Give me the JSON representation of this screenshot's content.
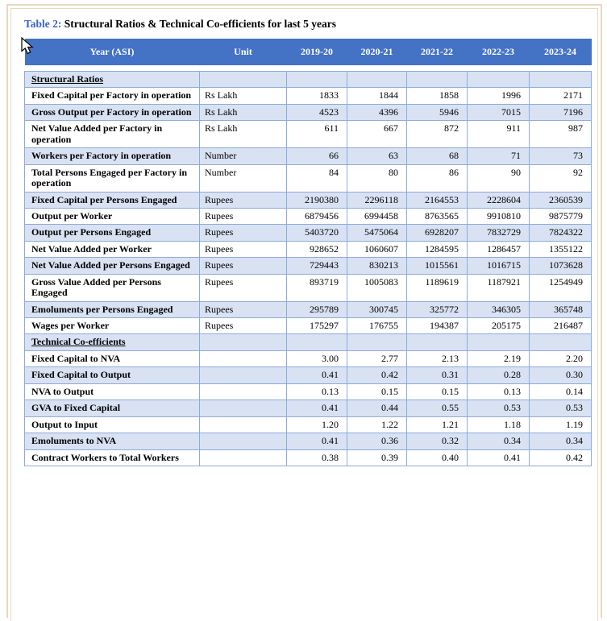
{
  "page": {
    "title_label": "Table 2:",
    "title_text": " Structural Ratios & Technical Co-efficients for last 5 years"
  },
  "colors": {
    "header_bg": "#4472C4",
    "row_alt_bg": "#D9E2F3",
    "border": "#8EAADB",
    "page_border": "#E8D8BE",
    "title_accent": "#3B62C4"
  },
  "icons": {
    "cursor": "arrow-pointer-icon"
  },
  "table": {
    "columns": [
      "Year (ASI)",
      "Unit",
      "2019-20",
      "2020-21",
      "2021-22",
      "2022-23",
      "2023-24"
    ],
    "rows": [
      {
        "label": "Structural Ratios",
        "section": true,
        "unit": "",
        "values": [
          "",
          "",
          "",
          "",
          ""
        ]
      },
      {
        "label": "Fixed Capital per Factory in operation",
        "unit": "Rs Lakh",
        "values": [
          "1833",
          "1844",
          "1858",
          "1996",
          "2171"
        ]
      },
      {
        "label": "Gross Output per Factory in operation",
        "unit": "Rs Lakh",
        "values": [
          "4523",
          "4396",
          "5946",
          "7015",
          "7196"
        ]
      },
      {
        "label": "Net Value Added per Factory in operation",
        "unit": "Rs Lakh",
        "values": [
          "611",
          "667",
          "872",
          "911",
          "987"
        ]
      },
      {
        "label": "Workers per Factory in operation",
        "unit": "Number",
        "values": [
          "66",
          "63",
          "68",
          "71",
          "73"
        ]
      },
      {
        "label": "Total Persons Engaged per Factory in operation",
        "unit": "Number",
        "values": [
          "84",
          "80",
          "86",
          "90",
          "92"
        ]
      },
      {
        "label": "Fixed Capital per Persons Engaged",
        "unit": "Rupees",
        "values": [
          "2190380",
          "2296118",
          "2164553",
          "2228604",
          "2360539"
        ]
      },
      {
        "label": "Output per Worker",
        "unit": "Rupees",
        "values": [
          "6879456",
          "6994458",
          "8763565",
          "9910810",
          "9875779"
        ]
      },
      {
        "label": "Output per Persons Engaged",
        "unit": "Rupees",
        "values": [
          "5403720",
          "5475064",
          "6928207",
          "7832729",
          "7824322"
        ]
      },
      {
        "label": "Net Value Added per Worker",
        "unit": "Rupees",
        "values": [
          "928652",
          "1060607",
          "1284595",
          "1286457",
          "1355122"
        ]
      },
      {
        "label": "Net Value Added per Persons Engaged",
        "unit": "Rupees",
        "values": [
          "729443",
          "830213",
          "1015561",
          "1016715",
          "1073628"
        ]
      },
      {
        "label": "Gross Value Added per Persons Engaged",
        "unit": "Rupees",
        "values": [
          "893719",
          "1005083",
          "1189619",
          "1187921",
          "1254949"
        ]
      },
      {
        "label": "Emoluments per Persons Engaged",
        "unit": "Rupees",
        "values": [
          "295789",
          "300745",
          "325772",
          "346305",
          "365748"
        ]
      },
      {
        "label": "Wages per Worker",
        "unit": "Rupees",
        "values": [
          "175297",
          "176755",
          "194387",
          "205175",
          "216487"
        ]
      },
      {
        "label": "Technical Co-efficients",
        "section": true,
        "unit": "",
        "values": [
          "",
          "",
          "",
          "",
          ""
        ]
      },
      {
        "label": "Fixed Capital to NVA",
        "unit": "",
        "values": [
          "3.00",
          "2.77",
          "2.13",
          "2.19",
          "2.20"
        ]
      },
      {
        "label": "Fixed Capital to Output",
        "unit": "",
        "values": [
          "0.41",
          "0.42",
          "0.31",
          "0.28",
          "0.30"
        ]
      },
      {
        "label": "NVA to Output",
        "unit": "",
        "values": [
          "0.13",
          "0.15",
          "0.15",
          "0.13",
          "0.14"
        ]
      },
      {
        "label": "GVA to Fixed Capital",
        "unit": "",
        "values": [
          "0.41",
          "0.44",
          "0.55",
          "0.53",
          "0.53"
        ]
      },
      {
        "label": "Output to Input",
        "unit": "",
        "values": [
          "1.20",
          "1.22",
          "1.21",
          "1.18",
          "1.19"
        ]
      },
      {
        "label": "Emoluments to NVA",
        "unit": "",
        "values": [
          "0.41",
          "0.36",
          "0.32",
          "0.34",
          "0.34"
        ]
      },
      {
        "label": "Contract Workers to Total Workers",
        "unit": "",
        "values": [
          "0.38",
          "0.39",
          "0.40",
          "0.41",
          "0.42"
        ]
      }
    ]
  }
}
